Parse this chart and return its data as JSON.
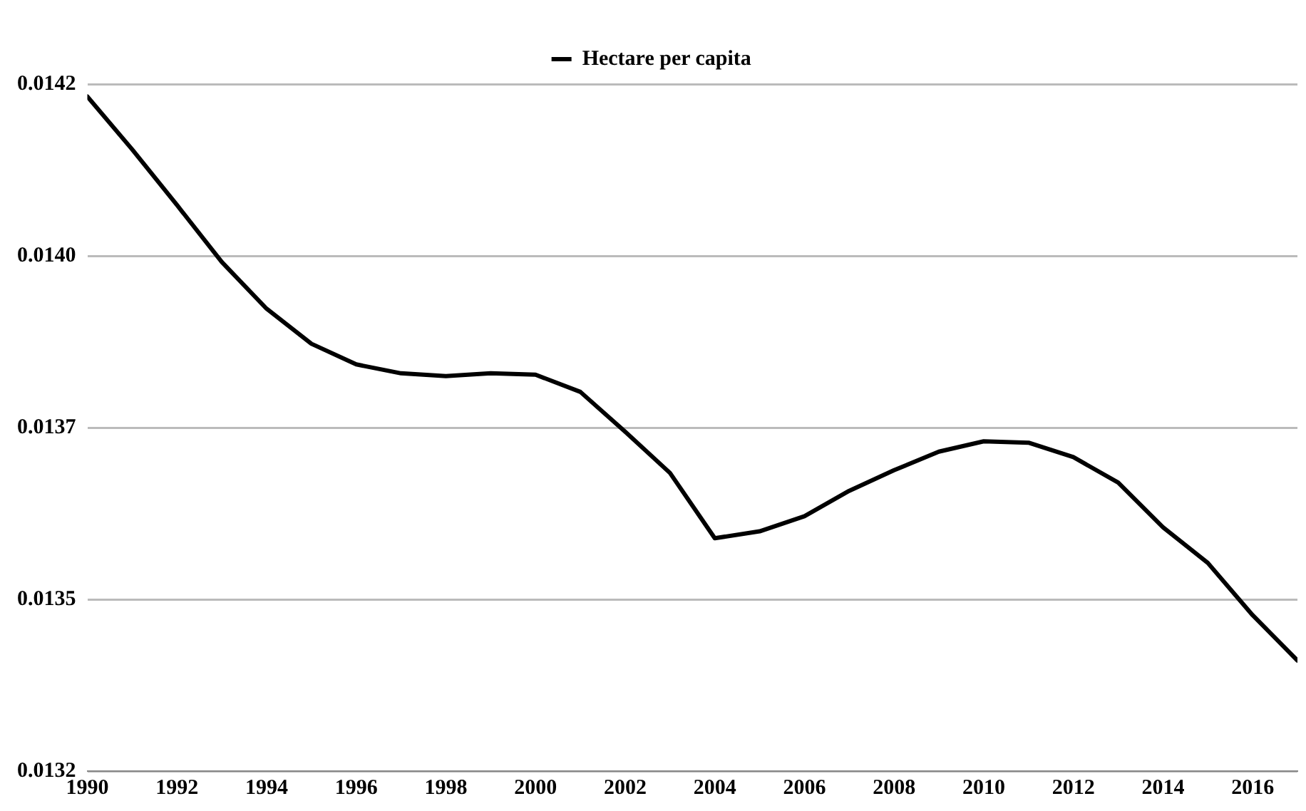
{
  "chart_data": {
    "type": "line",
    "x": [
      1990,
      1991,
      1992,
      1993,
      1994,
      1995,
      1996,
      1997,
      1998,
      1999,
      2000,
      2001,
      2002,
      2003,
      2004,
      2005,
      2006,
      2007,
      2008,
      2009,
      2010,
      2011,
      2012,
      2013,
      2014,
      2015,
      2016,
      2017
    ],
    "series": [
      {
        "name": "Hectare per capita",
        "color": "#000000",
        "values": [
          0.014232,
          0.014155,
          0.014074,
          0.013991,
          0.013923,
          0.013872,
          0.013842,
          0.013829,
          0.013825,
          0.013829,
          0.013827,
          0.013802,
          0.013744,
          0.013684,
          0.013589,
          0.013599,
          0.013621,
          0.013658,
          0.013688,
          0.013715,
          0.01373,
          0.013728,
          0.013707,
          0.01367,
          0.013605,
          0.013553,
          0.013477,
          0.013411
        ]
      }
    ],
    "xlim": [
      1990,
      2017
    ],
    "xticks": [
      1990,
      1992,
      1994,
      1996,
      1998,
      2000,
      2002,
      2004,
      2006,
      2008,
      2010,
      2012,
      2014,
      2016
    ],
    "ylim": [
      0.01325,
      0.01425
    ],
    "yticks": [
      {
        "value": 0.01325,
        "label": "0.0132"
      },
      {
        "value": 0.0135,
        "label": "0.0135"
      },
      {
        "value": 0.01375,
        "label": "0.0137"
      },
      {
        "value": 0.014,
        "label": "0.0140"
      },
      {
        "value": 0.01425,
        "label": "0.0142"
      }
    ],
    "grid": "y",
    "legend": "top",
    "marker": "none",
    "line_style": "solid"
  }
}
